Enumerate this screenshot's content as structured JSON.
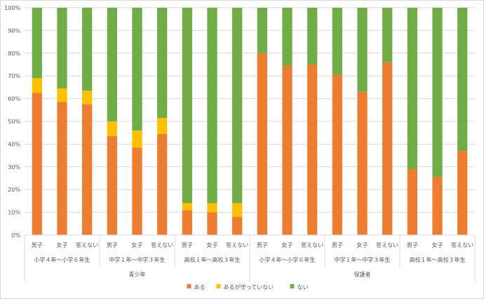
{
  "chart_data": {
    "type": "bar",
    "stacked": true,
    "percent": true,
    "ylim": [
      0,
      100
    ],
    "yticks": [
      "0%",
      "10%",
      "20%",
      "30%",
      "40%",
      "50%",
      "60%",
      "70%",
      "80%",
      "90%",
      "100%"
    ],
    "grid": true,
    "legend_position": "bottom",
    "groups": [
      {
        "label": "青少年",
        "subgroups": [
          {
            "label": "小学４年～小学６年生",
            "categories": [
              "男子",
              "女子",
              "答えない"
            ]
          },
          {
            "label": "中学１年～中学３年生",
            "categories": [
              "男子",
              "女子",
              "答えない"
            ]
          },
          {
            "label": "高校１年～高校３年生",
            "categories": [
              "男子",
              "女子",
              "答えない"
            ]
          }
        ]
      },
      {
        "label": "保護者",
        "subgroups": [
          {
            "label": "小学４年～小学６年生",
            "categories": [
              "男子",
              "女子",
              "答えない"
            ]
          },
          {
            "label": "中学１年～中学３年生",
            "categories": [
              "男子",
              "女子",
              "答えない"
            ]
          },
          {
            "label": "高校１年～高校３年生",
            "categories": [
              "男子",
              "女子",
              "答えない"
            ]
          }
        ]
      }
    ],
    "series": [
      {
        "name": "ある",
        "color": "#ED7D31",
        "values": [
          62.5,
          58.5,
          57.5,
          43.5,
          38.5,
          44.5,
          11,
          10,
          8,
          80,
          74.5,
          75,
          70.5,
          63,
          76,
          29,
          25.5,
          37
        ]
      },
      {
        "name": "あるが守っていない",
        "color": "#FFC000",
        "values": [
          6.5,
          6,
          6,
          6.5,
          7.5,
          7,
          3,
          4,
          6,
          0,
          0,
          0,
          0,
          0,
          0,
          0,
          0,
          0
        ]
      },
      {
        "name": "ない",
        "color": "#70AD47",
        "values": [
          31,
          35.5,
          36.5,
          50,
          54,
          48.5,
          86,
          86,
          86,
          20,
          25.5,
          25,
          29.5,
          37,
          24,
          71,
          74.5,
          63
        ]
      }
    ]
  }
}
